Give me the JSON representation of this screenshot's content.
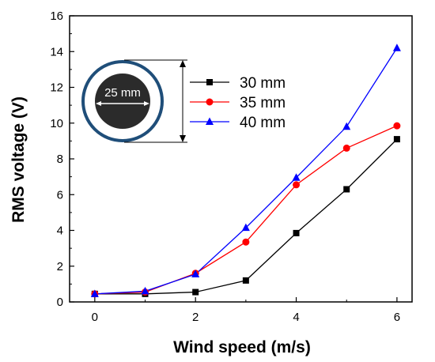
{
  "chart_data": {
    "type": "line",
    "title": "",
    "xlabel": "Wind speed (m/s)",
    "ylabel": "RMS voltage (V)",
    "xlim": [
      -0.5,
      6.3
    ],
    "ylim": [
      0,
      16
    ],
    "x_ticks": [
      "0",
      "2",
      "4",
      "6"
    ],
    "y_ticks": [
      "0",
      "2",
      "4",
      "6",
      "8",
      "10",
      "12",
      "14",
      "16"
    ],
    "grid": false,
    "legend_position": "top-center",
    "x": [
      0,
      1,
      2,
      3,
      4,
      5,
      6
    ],
    "series": [
      {
        "name": "30 mm",
        "color": "#000000",
        "marker": "square",
        "values": [
          0.45,
          0.45,
          0.55,
          1.2,
          3.85,
          6.3,
          9.1
        ]
      },
      {
        "name": "35 mm",
        "color": "#ff0000",
        "marker": "circle",
        "values": [
          0.45,
          0.55,
          1.6,
          3.35,
          6.55,
          8.6,
          9.85
        ]
      },
      {
        "name": "40 mm",
        "color": "#0000ff",
        "marker": "triangle",
        "values": [
          0.45,
          0.6,
          1.55,
          4.15,
          6.95,
          9.8,
          14.2
        ]
      }
    ],
    "inset": {
      "label": "25 mm",
      "outer_ring_color": "#1f4e79",
      "core_color": "#2b2b2b"
    }
  }
}
